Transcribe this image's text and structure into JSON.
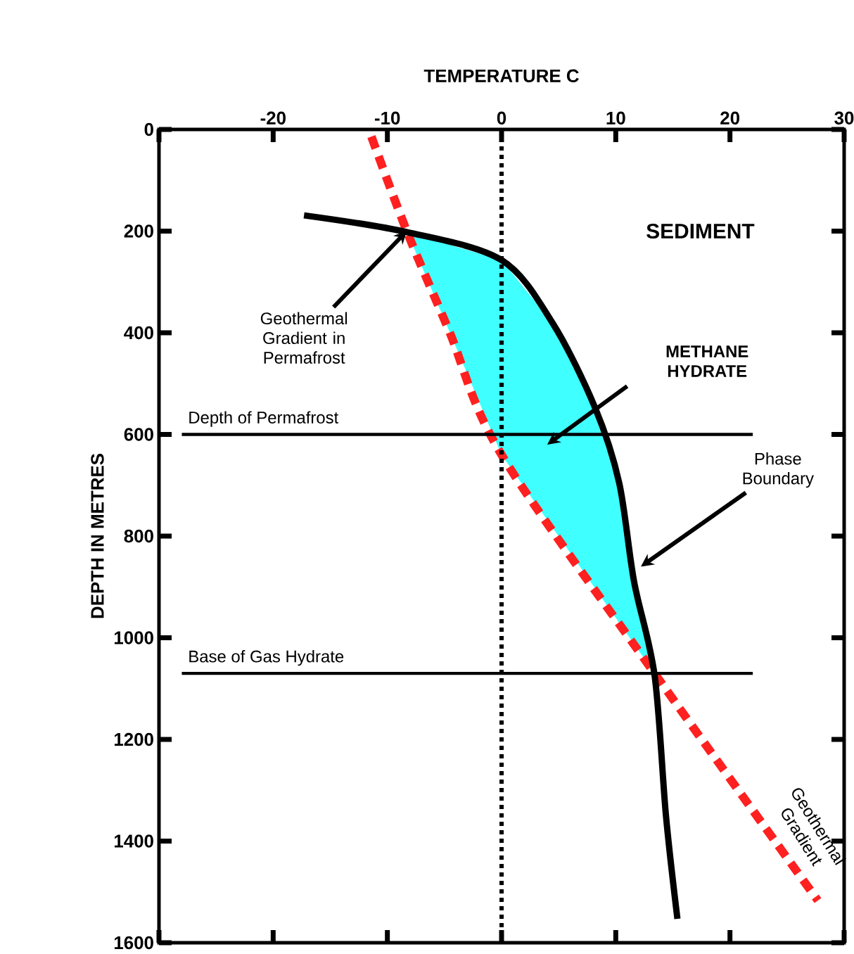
{
  "chart_data": {
    "type": "line",
    "xlabel": "TEMPERATURE C",
    "ylabel": "DEPTH IN METRES",
    "xlim": [
      -30,
      30
    ],
    "xticks": [
      {
        "value": -30,
        "label": null
      },
      -20,
      -10,
      0,
      10,
      20,
      30
    ],
    "ylim": [
      1600,
      0
    ],
    "yticks": [
      0,
      200,
      400,
      600,
      800,
      1000,
      1200,
      1400,
      1600
    ],
    "series": [
      {
        "type": "area",
        "color": "#40ffff",
        "x": [
          -8.3,
          -4.6,
          0,
          13.4,
          13.4,
          11.6,
          10.3,
          8.2,
          4.5,
          0,
          -8.3
        ],
        "values": [
          200,
          396,
          640,
          1070,
          1070,
          889,
          695,
          548,
          382,
          257,
          202
        ]
      },
      {
        "color": "#ff2020",
        "line_style": "dashed",
        "x": [
          -11.4,
          -8.3,
          -4.6,
          0,
          13.4,
          27.7
        ],
        "values": [
          14,
          200,
          396,
          640,
          1070,
          1517
        ]
      },
      {
        "color": "#000000",
        "line_style": "solid",
        "x": [
          -17.3,
          -8.3,
          0,
          4.5,
          8.2,
          10.3,
          11.6,
          13.4,
          14.4,
          15.4
        ],
        "values": [
          169,
          202,
          257,
          382,
          548,
          695,
          889,
          1074,
          1351,
          1553
        ]
      }
    ],
    "ref_lines": [
      {
        "axis": "x",
        "value": 0,
        "color": "#000000",
        "line_style": "dotted"
      },
      {
        "axis": "y",
        "value": 600,
        "label": "Depth of Permafrost",
        "color": "#000000"
      },
      {
        "axis": "y",
        "value": 1070,
        "label": "Base of Gas Hydrate",
        "color": "#000000"
      }
    ],
    "annotations": [
      "SEDIMENT",
      {
        "text": "Geothermal Gradient in Permafrost",
        "x": -8.3,
        "y": 200
      },
      "METHANE HYDRATE",
      {
        "text": "Phase Boundary",
        "x": 12.2,
        "y": 860
      },
      {
        "text": "Geothermal Gradient",
        "x": 22,
        "y": 1340
      }
    ]
  }
}
